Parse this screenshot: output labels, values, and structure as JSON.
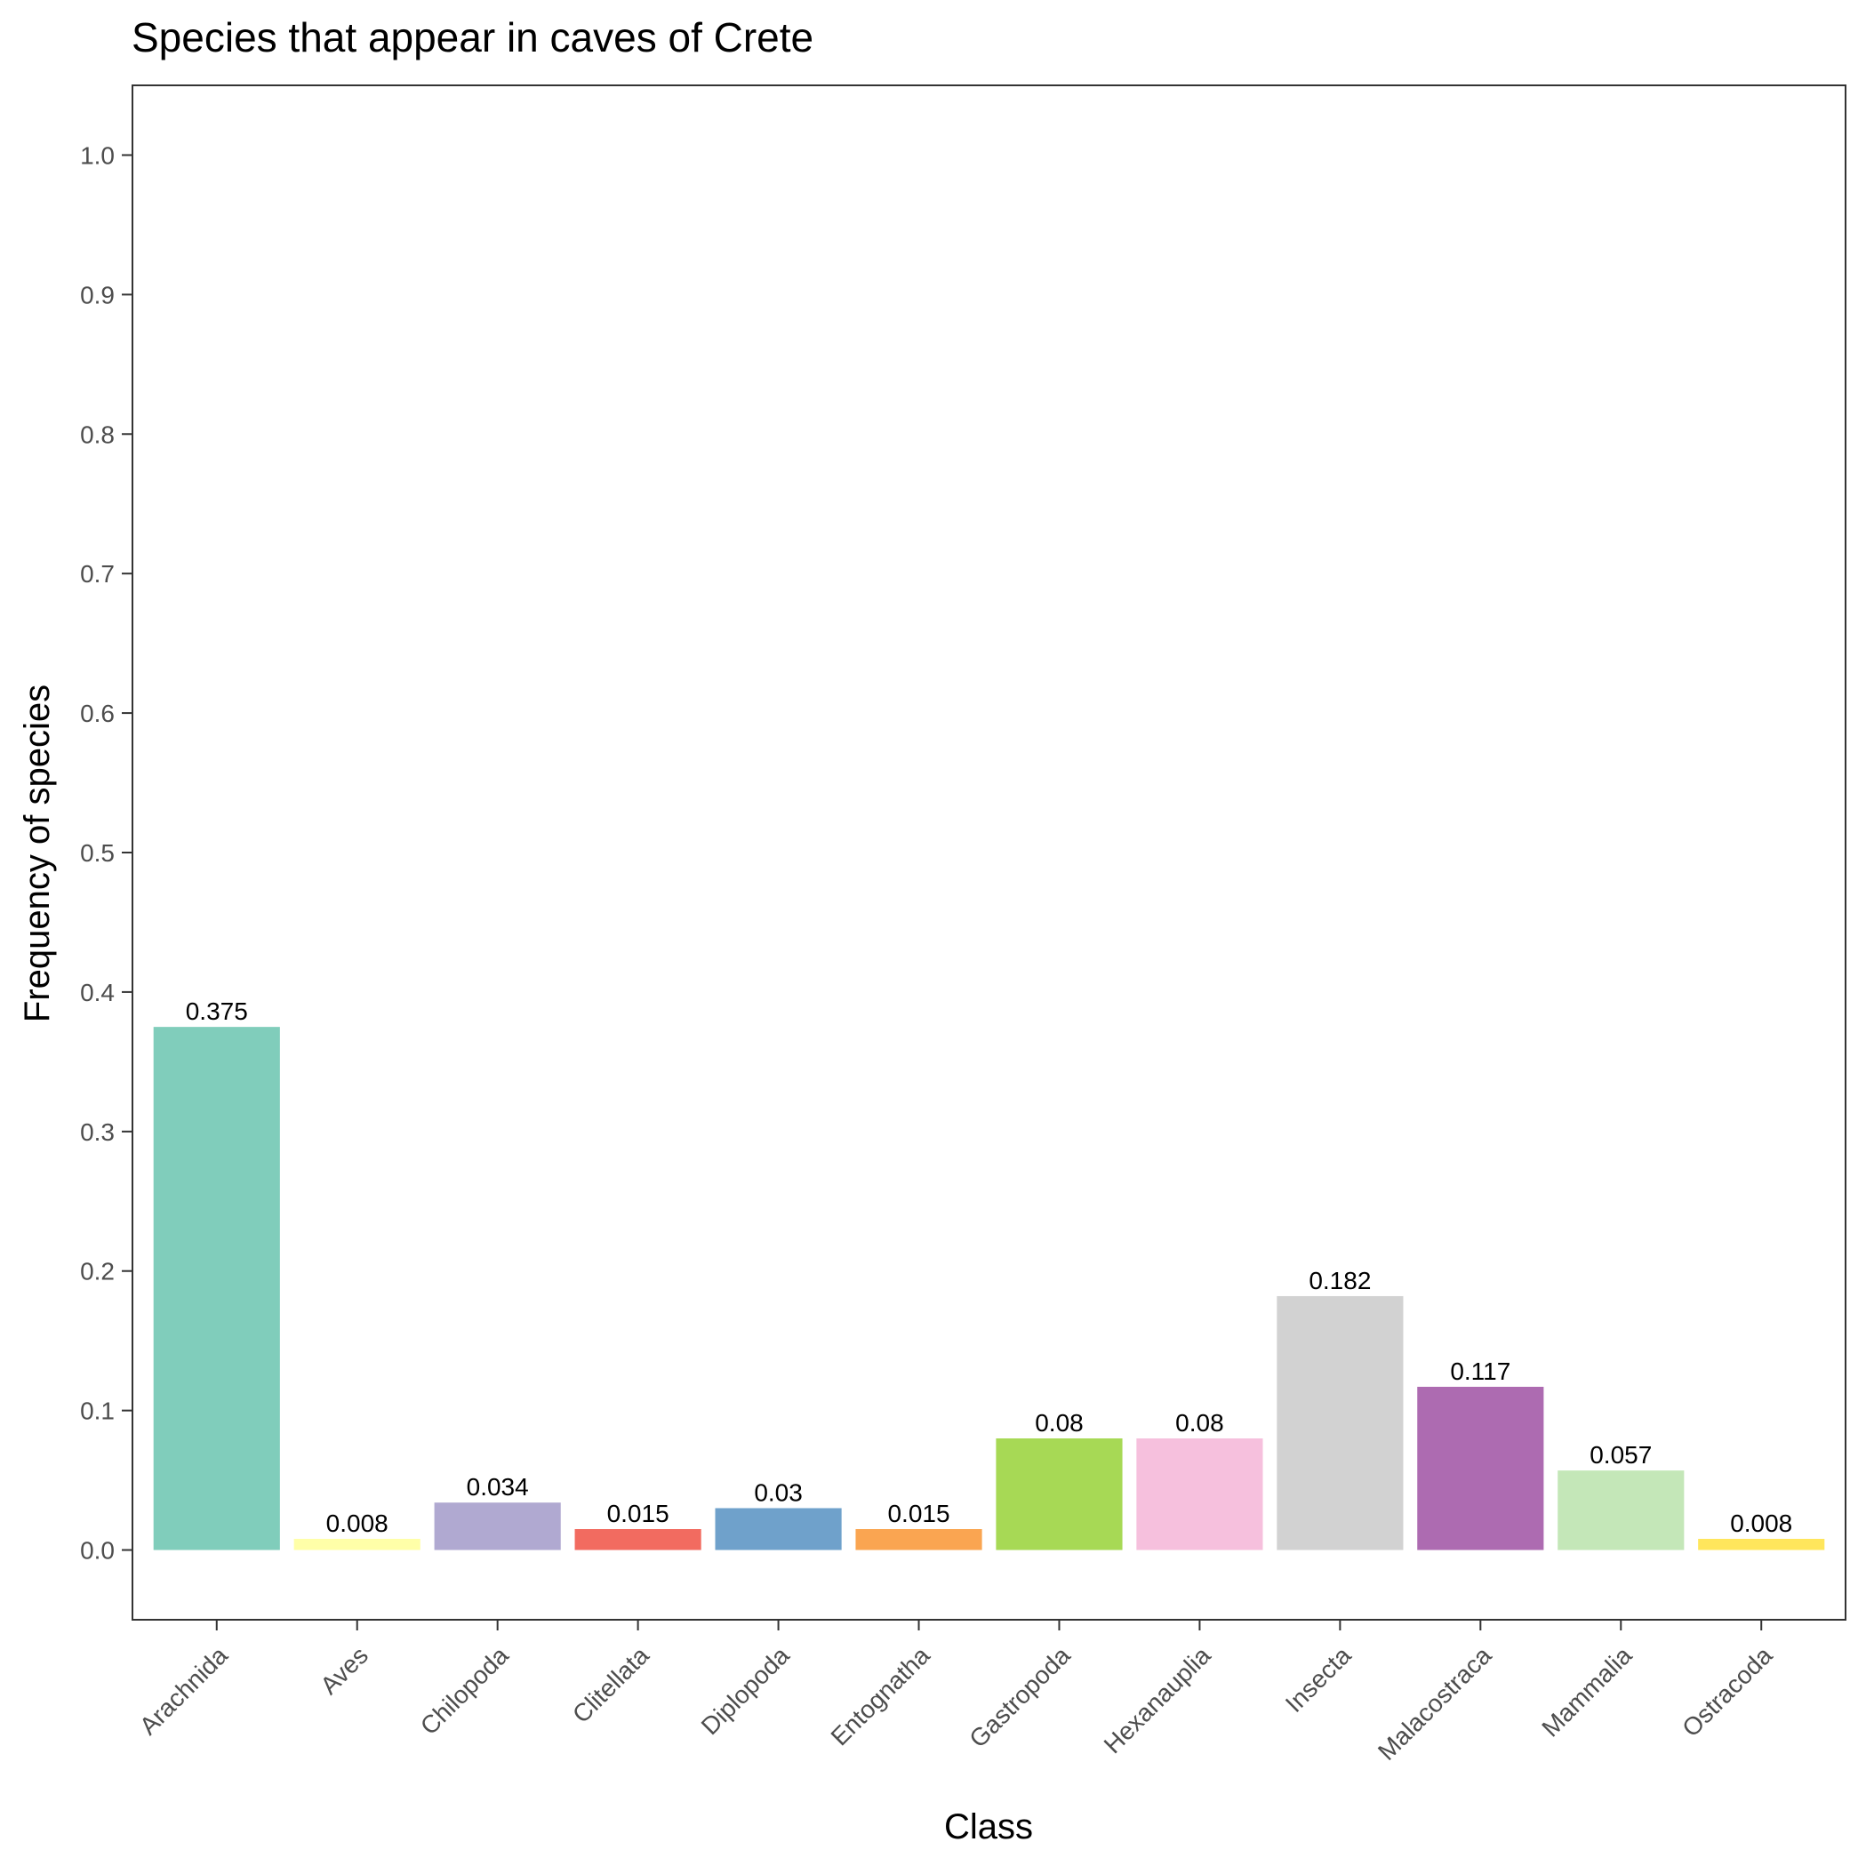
{
  "chart_data": {
    "type": "bar",
    "title": "Species that appear in caves of Crete",
    "xlabel": "Class",
    "ylabel": "Frequency of species",
    "categories": [
      "Arachnida",
      "Aves",
      "Chilopoda",
      "Clitellata",
      "Diplopoda",
      "Entognatha",
      "Gastropoda",
      "Hexanauplia",
      "Insecta",
      "Malacostraca",
      "Mammalia",
      "Ostracoda"
    ],
    "values": [
      0.375,
      0.008,
      0.034,
      0.015,
      0.03,
      0.015,
      0.08,
      0.08,
      0.182,
      0.117,
      0.057,
      0.008
    ],
    "value_labels": [
      "0.375",
      "0.008",
      "0.034",
      "0.015",
      "0.03",
      "0.015",
      "0.08",
      "0.08",
      "0.182",
      "0.117",
      "0.057",
      "0.008"
    ],
    "colors": [
      "#80CDBB",
      "#FFFFA8",
      "#B0A9D1",
      "#F26B60",
      "#6FA1CB",
      "#FAA551",
      "#A7D955",
      "#F6C0DD",
      "#D2D2D2",
      "#AD6BB1",
      "#C4E7B8",
      "#FFE65C"
    ],
    "yticks": [
      0.0,
      0.1,
      0.2,
      0.3,
      0.4,
      0.5,
      0.6,
      0.7,
      0.8,
      0.9,
      1.0
    ],
    "ytick_labels": [
      "0.0",
      "0.1",
      "0.2",
      "0.3",
      "0.4",
      "0.5",
      "0.6",
      "0.7",
      "0.8",
      "0.9",
      "1.0"
    ],
    "ylim": [
      -0.05,
      1.05
    ],
    "grid": false,
    "legend": "none"
  }
}
